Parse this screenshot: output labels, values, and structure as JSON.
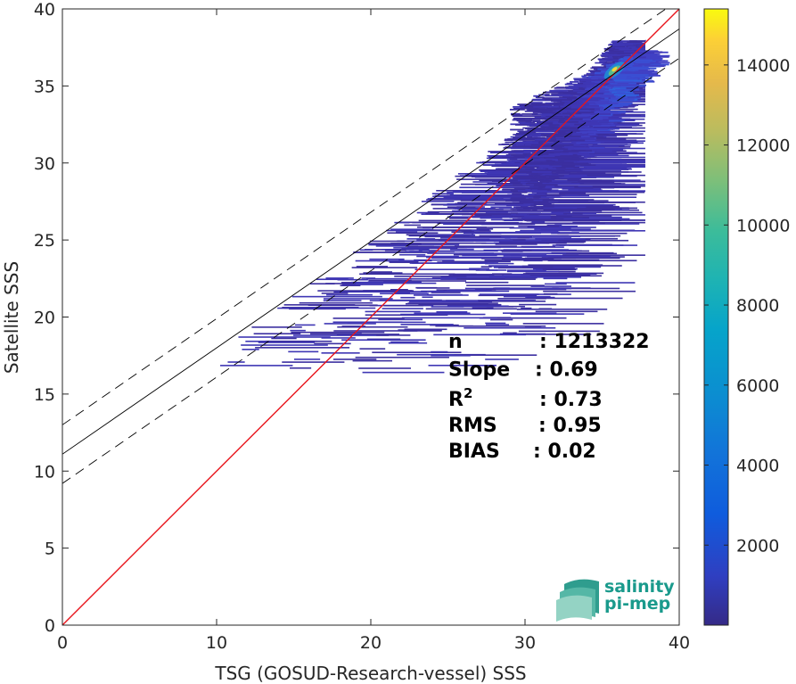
{
  "chart_data": {
    "type": "heatmap",
    "xlabel": "TSG (GOSUD-Research-vessel) SSS",
    "ylabel": "Satellite SSS",
    "xlim": [
      0,
      40
    ],
    "ylim": [
      0,
      40
    ],
    "xticks": [
      0,
      10,
      20,
      30,
      40
    ],
    "yticks": [
      0,
      5,
      10,
      15,
      20,
      25,
      30,
      35,
      40
    ],
    "grid": false,
    "colorbar": {
      "colormap": "parula",
      "range": [
        0,
        15400
      ],
      "ticks": [
        2000,
        4000,
        6000,
        8000,
        10000,
        12000,
        14000
      ]
    },
    "lines": [
      {
        "kind": "one-to-one",
        "color": "#e8141b",
        "slope": 1,
        "intercept": 0
      },
      {
        "kind": "regression",
        "color": "#000000",
        "slope": 0.69,
        "intercept": 11.1
      },
      {
        "kind": "regression-upper-dashed",
        "color": "#000000",
        "slope": 0.69,
        "intercept": 13.0
      },
      {
        "kind": "regression-lower-dashed",
        "color": "#000000",
        "slope": 0.69,
        "intercept": 9.2
      }
    ],
    "density": {
      "core": {
        "x": 35.8,
        "y": 36.0,
        "peak": 15000
      },
      "extent_x": [
        9,
        38
      ],
      "extent_y": [
        16,
        38
      ]
    },
    "stats": [
      {
        "label": "n",
        "value": ": 1213322"
      },
      {
        "label": "Slope",
        "value": ": 0.69"
      },
      {
        "label": "R",
        "sup": "2",
        "value": ": 0.73"
      },
      {
        "label": "RMS",
        "value": ": 0.95"
      },
      {
        "label": "BIAS",
        "value": ": 0.02"
      }
    ]
  },
  "logo": {
    "line1": "salinity",
    "line2": "pi-mep",
    "color": "#1a9a8c"
  }
}
